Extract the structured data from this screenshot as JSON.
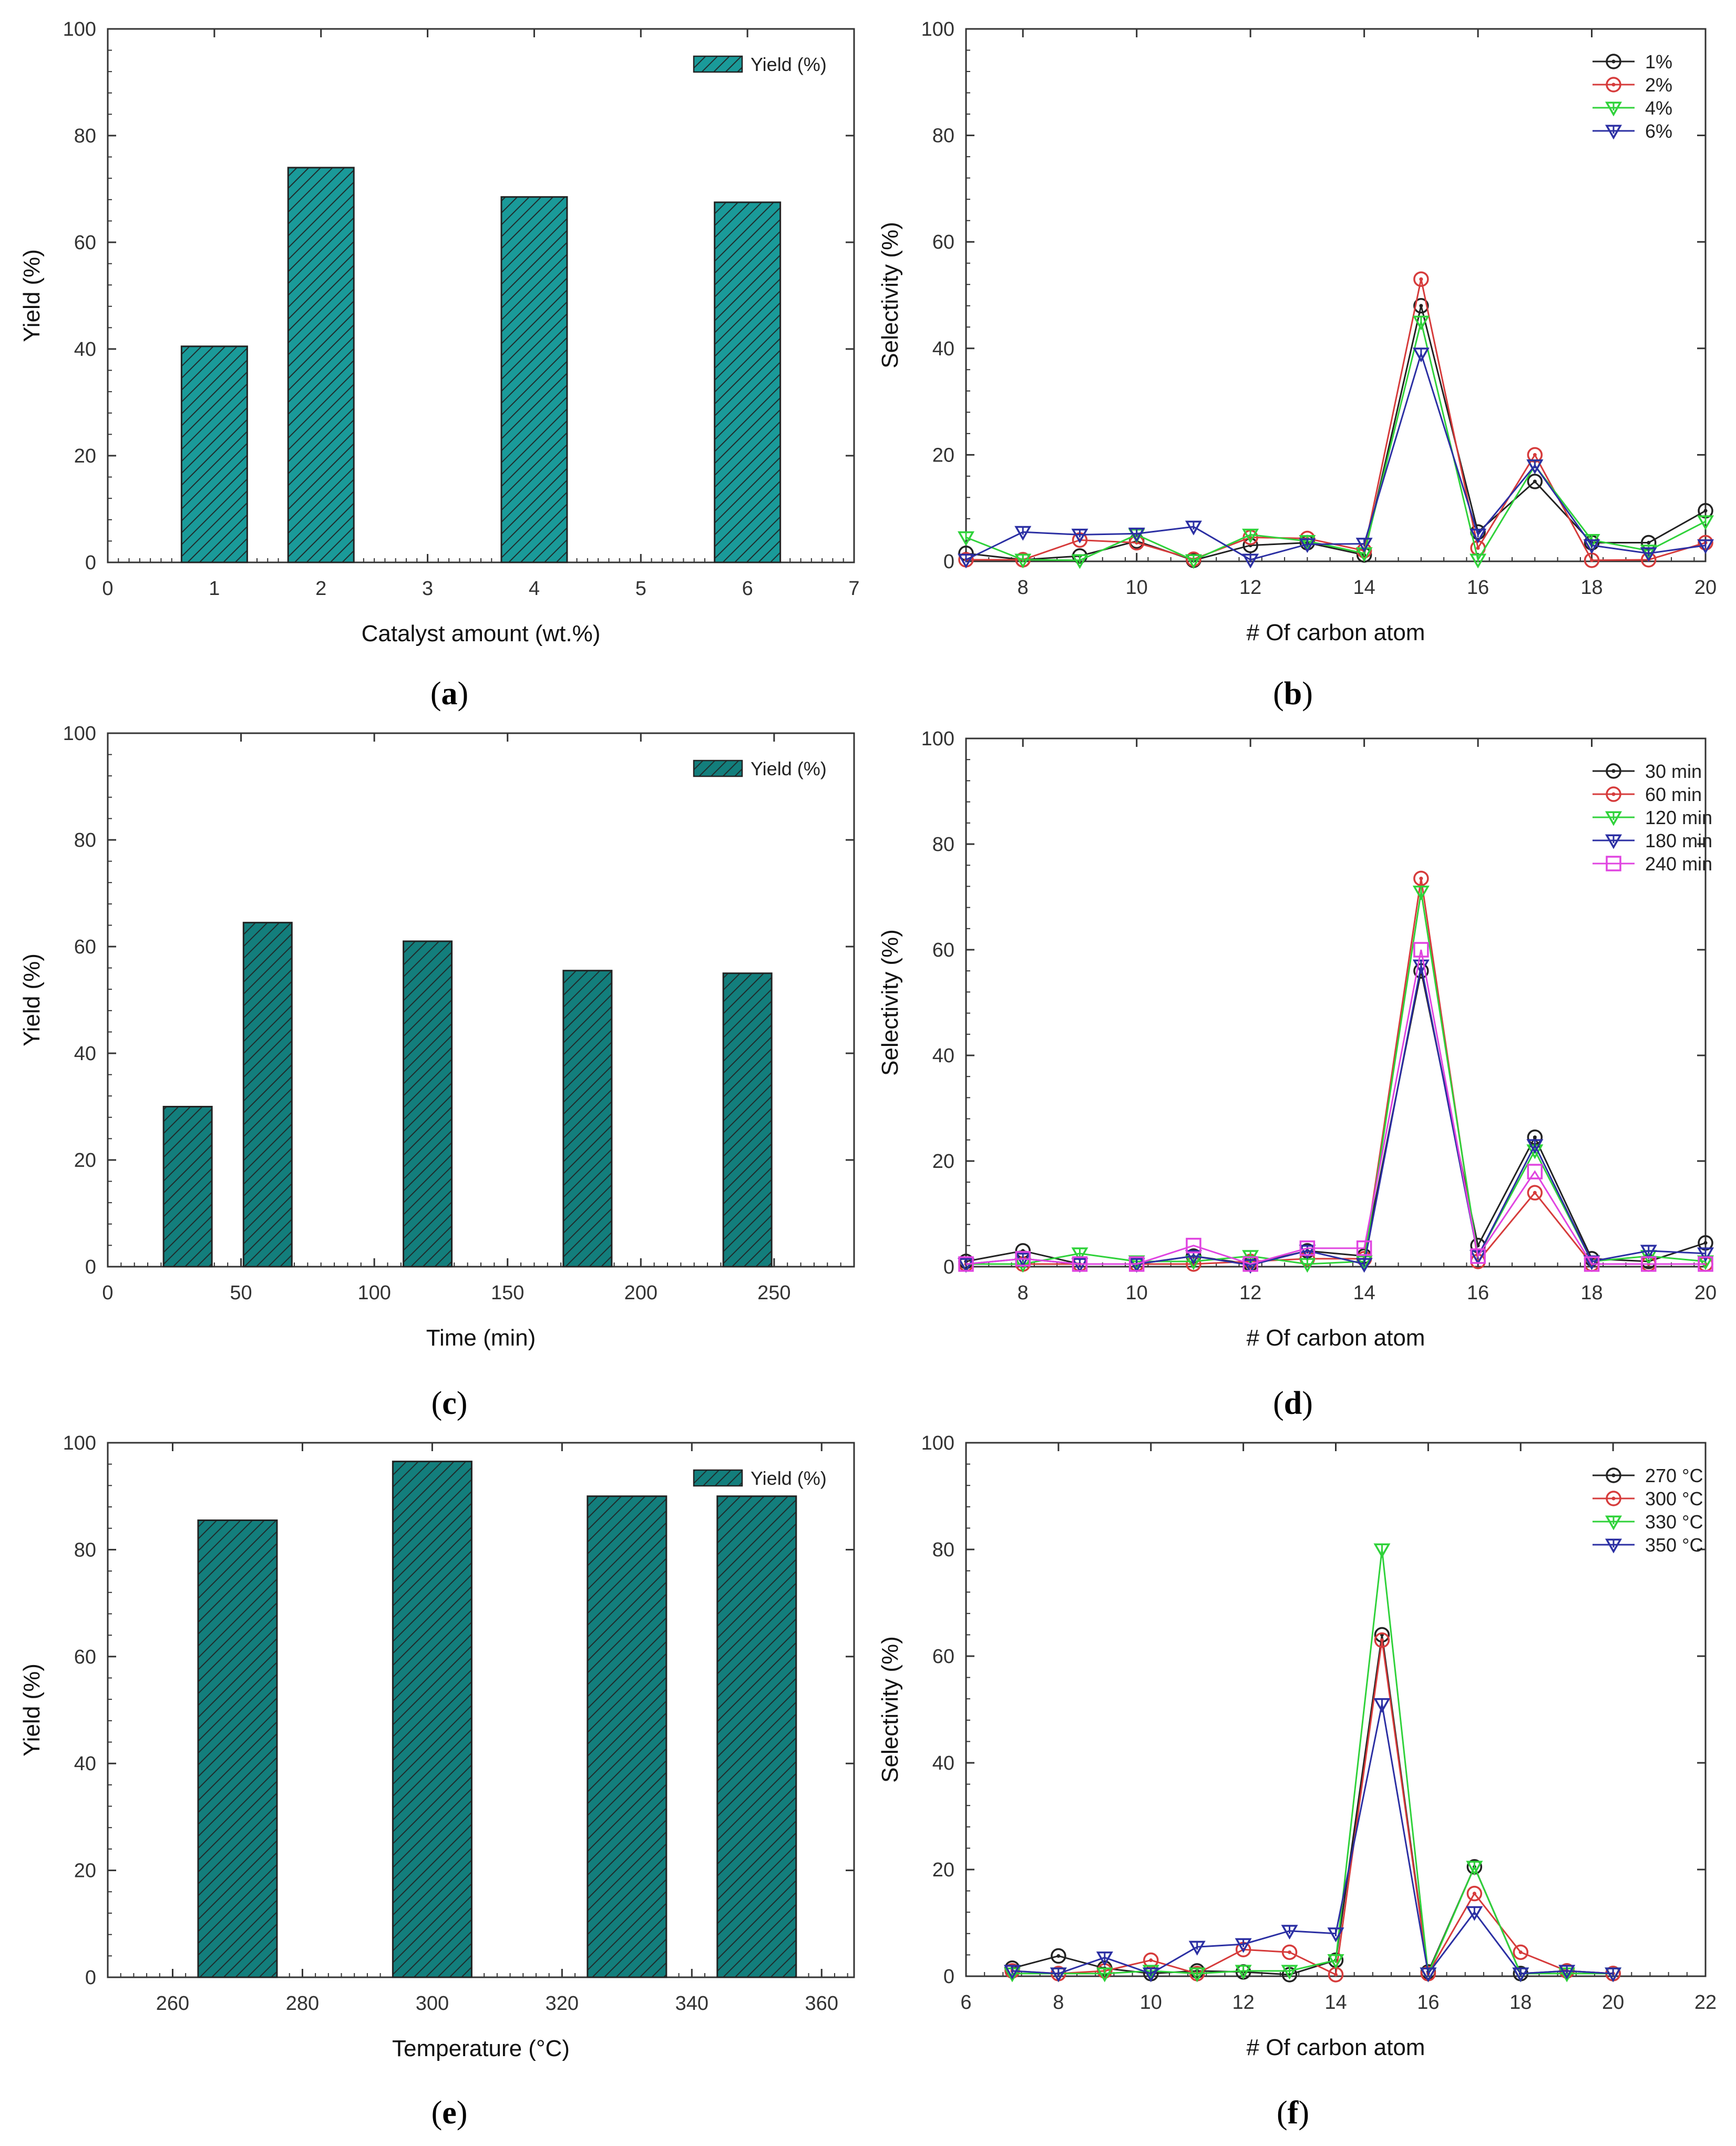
{
  "colors": {
    "bar_fill": "#1a9a99",
    "bar_fill_dark": "#137e7c",
    "hatch": "#1f2b2b",
    "s_black": "#222222",
    "s_red": "#d63b3b",
    "s_green": "#2fd23a",
    "s_blue": "#2b2fa3",
    "s_magenta": "#e044e0"
  },
  "chart_data": [
    {
      "id": "a",
      "type": "bar",
      "panel_label": "a",
      "x": [
        1,
        2,
        4,
        6
      ],
      "values": [
        40.5,
        74,
        68.5,
        67.5
      ],
      "series_name": "Yield (%)",
      "xlabel": "Catalyst amount (wt.%)",
      "ylabel": "Yield (%)",
      "xlim": [
        0,
        7
      ],
      "ylim": [
        0,
        100
      ],
      "xticks": [
        0,
        1,
        2,
        3,
        4,
        5,
        6,
        7
      ],
      "yticks": [
        0,
        20,
        40,
        60,
        80,
        100
      ],
      "legend_position": "top-right",
      "grid": false
    },
    {
      "id": "b",
      "type": "line",
      "panel_label": "b",
      "x": [
        7,
        8,
        9,
        10,
        11,
        12,
        13,
        14,
        15,
        16,
        17,
        18,
        19,
        20
      ],
      "xlabel": "# Of carbon atom",
      "ylabel": "Selectivity (%)",
      "xlim": [
        7,
        20
      ],
      "ylim": [
        0,
        100
      ],
      "xticks": [
        8,
        10,
        12,
        14,
        16,
        18,
        20
      ],
      "yticks": [
        0,
        20,
        40,
        60,
        80,
        100
      ],
      "legend_position": "top-right",
      "grid": false,
      "series": [
        {
          "name": "1%",
          "marker": "circle",
          "color_key": "s_black",
          "values": [
            1.5,
            0.3,
            1.0,
            3.8,
            0.2,
            3.0,
            3.5,
            1.2,
            48,
            5.5,
            15,
            3.5,
            3.5,
            9.5
          ]
        },
        {
          "name": "2%",
          "marker": "circle",
          "color_key": "s_red",
          "values": [
            0.3,
            0.3,
            4.0,
            3.5,
            0.4,
            4.5,
            4.3,
            2.0,
            53,
            2.5,
            20,
            0.2,
            0.3,
            3.5
          ]
        },
        {
          "name": "4%",
          "marker": "triangle-down",
          "color_key": "s_green",
          "values": [
            4.5,
            0.3,
            0.2,
            5.0,
            0.2,
            5.0,
            3.8,
            1.5,
            45,
            0.3,
            18,
            4.0,
            2.0,
            7.5
          ]
        },
        {
          "name": "6%",
          "marker": "triangle-down",
          "color_key": "s_blue",
          "values": [
            0.3,
            5.5,
            5.0,
            5.2,
            6.5,
            0.3,
            3.2,
            3.3,
            39,
            5.0,
            18,
            3.0,
            1.5,
            3.0
          ]
        }
      ]
    },
    {
      "id": "c",
      "type": "bar",
      "panel_label": "c",
      "x": [
        30,
        60,
        120,
        180,
        240
      ],
      "values": [
        30,
        64.5,
        61,
        55.5,
        55
      ],
      "series_name": "Yield (%)",
      "xlabel": "Time (min)",
      "ylabel": "Yield (%)",
      "xlim": [
        0,
        280
      ],
      "ylim": [
        0,
        100
      ],
      "xticks": [
        0,
        50,
        100,
        150,
        200,
        250
      ],
      "yticks": [
        0,
        20,
        40,
        60,
        80,
        100
      ],
      "legend_position": "top-right",
      "grid": false
    },
    {
      "id": "d",
      "type": "line",
      "panel_label": "d",
      "x": [
        7,
        8,
        9,
        10,
        11,
        12,
        13,
        14,
        15,
        16,
        17,
        18,
        19,
        20
      ],
      "xlabel": "# Of carbon atom",
      "ylabel": "Selectivity (%)",
      "xlim": [
        7,
        20
      ],
      "ylim": [
        0,
        100
      ],
      "xticks": [
        8,
        10,
        12,
        14,
        16,
        18,
        20
      ],
      "yticks": [
        0,
        20,
        40,
        60,
        80,
        100
      ],
      "legend_position": "top-right",
      "grid": false,
      "series": [
        {
          "name": "30 min",
          "marker": "circle",
          "color_key": "s_black",
          "values": [
            1.0,
            3.0,
            0.5,
            0.5,
            2.0,
            0.5,
            3.0,
            2.0,
            56,
            4.0,
            24.5,
            1.5,
            1.0,
            4.5
          ]
        },
        {
          "name": "60 min",
          "marker": "circle",
          "color_key": "s_red",
          "values": [
            0.5,
            0.5,
            0.5,
            0.5,
            0.5,
            1.0,
            1.5,
            1.5,
            73.5,
            1.0,
            14,
            0.5,
            0.5,
            0.5
          ]
        },
        {
          "name": "120 min",
          "marker": "triangle-down",
          "color_key": "s_green",
          "values": [
            0.5,
            0.5,
            2.5,
            1.0,
            1.0,
            2.0,
            0.5,
            1.0,
            71,
            2.0,
            22,
            1.0,
            2.0,
            1.0
          ]
        },
        {
          "name": "180 min",
          "marker": "triangle-down",
          "color_key": "s_blue",
          "values": [
            0.5,
            1.5,
            0.5,
            0.5,
            2.0,
            0.3,
            3.0,
            0.5,
            57,
            2.0,
            23,
            1.0,
            3.0,
            2.5
          ]
        },
        {
          "name": "240 min",
          "marker": "square",
          "color_key": "s_magenta",
          "values": [
            0.5,
            1.5,
            0.5,
            0.5,
            4.0,
            0.5,
            3.5,
            3.5,
            60,
            2.0,
            18,
            0.5,
            0.5,
            0.5
          ]
        }
      ]
    },
    {
      "id": "e",
      "type": "bar",
      "panel_label": "e",
      "x": [
        270,
        300,
        330,
        350
      ],
      "values": [
        85.5,
        96.5,
        90,
        90
      ],
      "series_name": "Yield (%)",
      "xlabel": "Temperature (°C)",
      "ylabel": "Yield (%)",
      "xlim": [
        250,
        365
      ],
      "ylim": [
        0,
        100
      ],
      "xticks": [
        260,
        280,
        300,
        320,
        340,
        360
      ],
      "yticks": [
        0,
        20,
        40,
        60,
        80,
        100
      ],
      "legend_position": "top-right",
      "grid": false
    },
    {
      "id": "f",
      "type": "line",
      "panel_label": "f",
      "x": [
        7,
        8,
        9,
        10,
        11,
        12,
        13,
        14,
        15,
        16,
        17,
        18,
        19,
        20
      ],
      "xlabel": "# Of carbon atom",
      "ylabel": "Selectivity (%)",
      "xlim": [
        6,
        22
      ],
      "ylim": [
        0,
        100
      ],
      "xticks": [
        6,
        8,
        10,
        12,
        14,
        16,
        18,
        20,
        22
      ],
      "yticks": [
        0,
        20,
        40,
        60,
        80,
        100
      ],
      "legend_position": "top-right",
      "grid": false,
      "series": [
        {
          "name": "270 °C",
          "marker": "circle",
          "color_key": "s_black",
          "values": [
            1.5,
            3.8,
            1.5,
            0.5,
            1.0,
            0.8,
            0.3,
            3.0,
            64,
            0.8,
            20.5,
            0.5,
            1.0,
            0.5
          ]
        },
        {
          "name": "300 °C",
          "marker": "circle",
          "color_key": "s_red",
          "values": [
            1.0,
            0.5,
            1.0,
            3.0,
            0.5,
            5.0,
            4.5,
            0.3,
            63,
            0.5,
            15.5,
            4.5,
            1.0,
            0.5
          ]
        },
        {
          "name": "330 °C",
          "marker": "triangle-down",
          "color_key": "s_green",
          "values": [
            0.5,
            0.5,
            0.5,
            1.0,
            0.5,
            1.0,
            1.0,
            3.0,
            80,
            0.5,
            20.5,
            0.5,
            0.5,
            0.5
          ]
        },
        {
          "name": "350 °C",
          "marker": "triangle-down",
          "color_key": "s_blue",
          "values": [
            1.0,
            0.5,
            3.5,
            0.5,
            5.5,
            6.0,
            8.5,
            8.0,
            51,
            0.5,
            12,
            0.5,
            1.0,
            0.5
          ]
        }
      ]
    }
  ]
}
